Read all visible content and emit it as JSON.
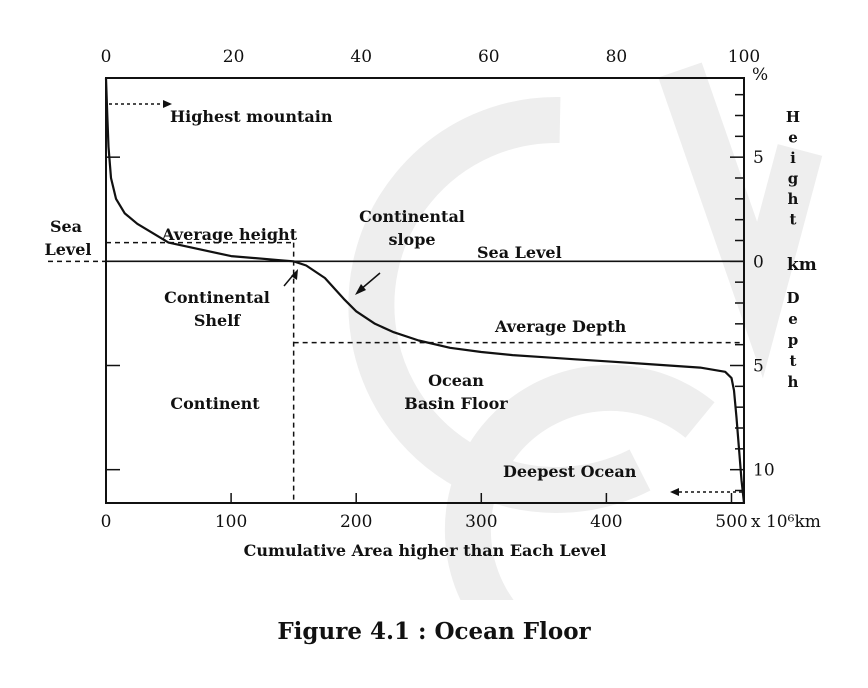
{
  "chart_data": {
    "type": "line",
    "caption": "Figure 4.1 : Ocean Floor",
    "xlabel": "Cumulative Area higher than Each Level",
    "x_unit": "x 10⁶km",
    "x_bottom": {
      "ticks": [
        0,
        100,
        200,
        300,
        400,
        500
      ],
      "lim": [
        0,
        510
      ]
    },
    "x_top": {
      "ticks": [
        0,
        20,
        40,
        60,
        80,
        100
      ],
      "unit": "%",
      "lim": [
        0,
        100
      ]
    },
    "y_height": {
      "ticks": [
        5
      ],
      "unit": "km",
      "label": "Height",
      "zero_label": "0"
    },
    "y_depth": {
      "ticks": [
        5,
        10
      ],
      "label": "Depth"
    },
    "ylim": [
      -11.6,
      8.8
    ],
    "grid": false,
    "series": [
      {
        "x": [
          0,
          1,
          2,
          4,
          8,
          15,
          25,
          50,
          100,
          140,
          150,
          160,
          175,
          190,
          200,
          215,
          230,
          250,
          275,
          300,
          325,
          350,
          375,
          400,
          425,
          450,
          475,
          495,
          500,
          502,
          504,
          506,
          508,
          510
        ],
        "y": [
          8.8,
          7.0,
          5.5,
          4.0,
          3.0,
          2.3,
          1.8,
          0.9,
          0.25,
          0.05,
          0.0,
          -0.2,
          -0.8,
          -1.8,
          -2.4,
          -3.0,
          -3.4,
          -3.8,
          -4.15,
          -4.35,
          -4.5,
          -4.6,
          -4.7,
          -4.8,
          -4.9,
          -5.0,
          -5.1,
          -5.3,
          -5.6,
          -6.2,
          -7.5,
          -9.0,
          -10.5,
          -11.6
        ]
      }
    ],
    "reference_lines": {
      "sea_level": {
        "y": 0,
        "label": "Sea Level"
      },
      "average_height": {
        "y": 0.9,
        "label": "Average height"
      },
      "average_depth": {
        "y": -3.9,
        "label": "Average Depth"
      },
      "continent_boundary": {
        "x": 150
      }
    },
    "annotations": {
      "highest_mountain": "Highest mountain",
      "deepest_ocean": "Deepest Ocean",
      "sea_level_left": [
        "Sea",
        "Level"
      ],
      "continental_slope": [
        "Continental",
        "slope"
      ],
      "continental_shelf": [
        "Continental",
        "Shelf"
      ],
      "continent": "Continent",
      "ocean_basin_floor": [
        "Ocean",
        "Basin Floor"
      ]
    }
  }
}
